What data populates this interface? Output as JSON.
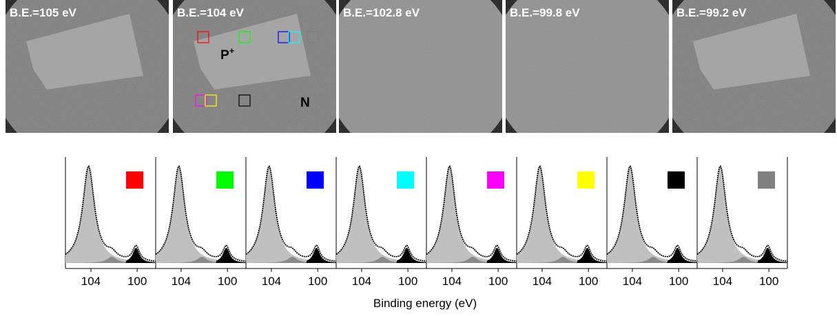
{
  "images": [
    {
      "label": "B.E.=105 eV"
    },
    {
      "label": "B.E.=104 eV"
    },
    {
      "label": "B.E.=102.8 eV"
    },
    {
      "label": "B.E.=99.8 eV"
    },
    {
      "label": "B.E.=99.2 eV"
    }
  ],
  "annotations": {
    "p_region": "P",
    "p_superscript": "+",
    "n_region": "N"
  },
  "spectra": {
    "xlim": [
      106.2,
      98.4
    ],
    "xticks": [
      104,
      100
    ],
    "xlabel": "Binding energy (eV)",
    "panels": [
      {
        "color": "#ff0000"
      },
      {
        "color": "#00ff00"
      },
      {
        "color": "#0000ff"
      },
      {
        "color": "#00ffff"
      },
      {
        "color": "#ff00ff"
      },
      {
        "color": "#ffff00"
      },
      {
        "color": "#000000"
      },
      {
        "color": "#808080"
      }
    ]
  }
}
